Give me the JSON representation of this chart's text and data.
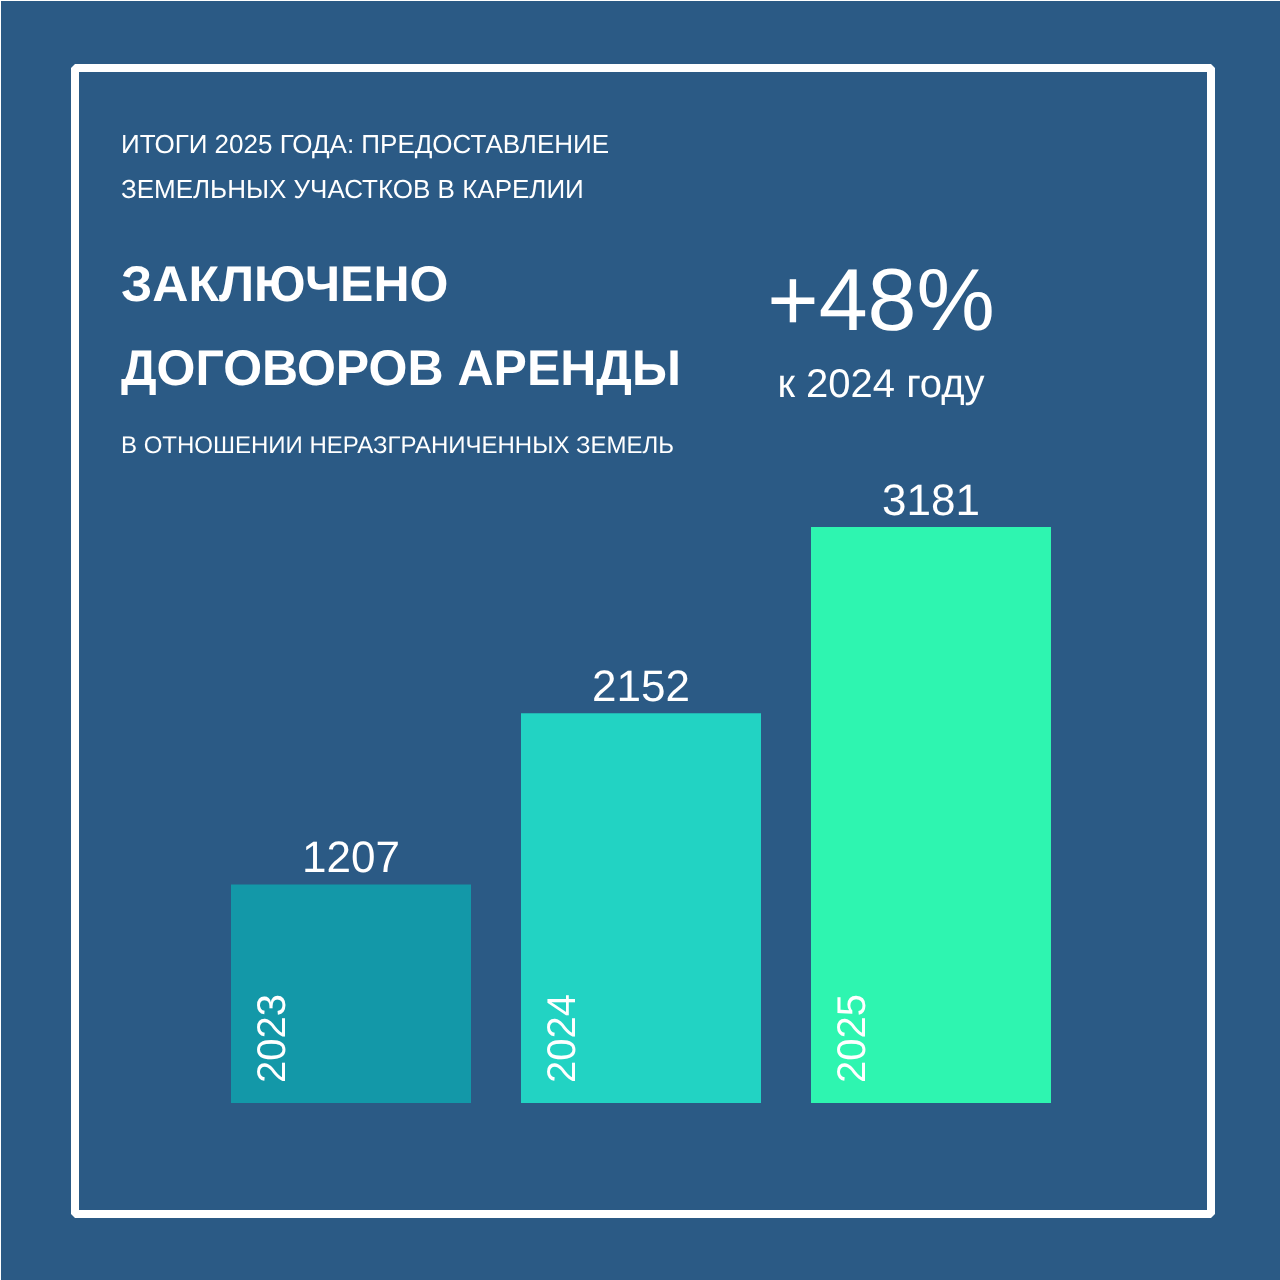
{
  "chart_data": {
    "type": "bar",
    "title": "ЗАКЛЮЧЕНО\nДОГОВОРОВ АРЕНДЫ",
    "subtitle": "В ОТНОШЕНИИ НЕРАЗГРАНИЧЕННЫХ ЗЕМЕЛЬ",
    "annotations": [
      "ИТОГИ 2025 ГОДА: ПРЕДОСТАВЛЕНИЕ\nЗЕМЕЛЬНЫХ УЧАСТКОВ В КАРЕЛИИ",
      "+48%",
      "к 2024 году"
    ],
    "categories": [
      "2023",
      "2024",
      "2025"
    ],
    "values": [
      1207,
      2152,
      3181
    ],
    "colors": [
      "#1398a8",
      "#22d3c3",
      "#2ef5b0"
    ],
    "data_labels": true
  }
}
